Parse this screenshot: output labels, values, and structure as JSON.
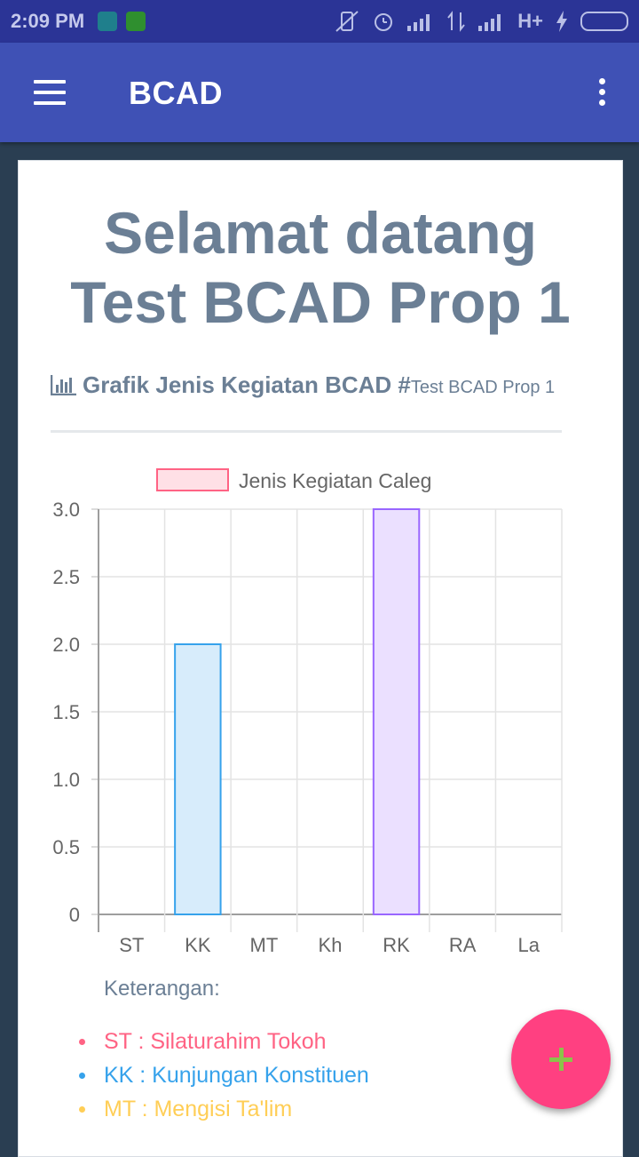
{
  "status_bar": {
    "time": "2:09 PM",
    "network_label": "H+",
    "icons": [
      "notification-app-icon",
      "notification-app-icon",
      "vibrate-off-icon",
      "alarm-icon",
      "signal-icon",
      "data-arrows-icon",
      "signal-icon",
      "charging-icon",
      "battery-icon"
    ]
  },
  "app_bar": {
    "title": "BCAD",
    "left_icon": "hamburger-menu-icon",
    "right_icon": "overflow-menu-icon"
  },
  "welcome": {
    "line1": "Selamat datang",
    "line2": "Test BCAD Prop 1"
  },
  "section": {
    "icon": "bar-chart-icon",
    "title": "Grafik Jenis Kegiatan BCAD #",
    "subtitle": "Test BCAD Prop 1"
  },
  "chart_data": {
    "type": "bar",
    "categories": [
      "ST",
      "KK",
      "MT",
      "Kh",
      "RK",
      "RA",
      "La"
    ],
    "series": [
      {
        "name": "Jenis Kegiatan Caleg",
        "values": [
          0,
          2,
          0,
          0,
          3,
          0,
          0
        ]
      }
    ],
    "ylim": [
      0,
      3
    ],
    "yticks": [
      0,
      0.5,
      1.0,
      1.5,
      2.0,
      2.5,
      3.0
    ],
    "ytick_labels": [
      "0",
      "0.5",
      "1.0",
      "1.5",
      "2.0",
      "2.5",
      "3.0"
    ],
    "legend_position": "top-center",
    "grid": true,
    "bar_fill_colors": [
      "#ffe0e6",
      "#d7ecfb",
      "#fff5dd",
      "#dbf2f2",
      "#ebe0ff",
      "#ffecd9",
      "#f4f5f5"
    ],
    "bar_border_colors": [
      "#ff6384",
      "#36a2eb",
      "#ffce56",
      "#4bc0c0",
      "#9966ff",
      "#ff9f40",
      "#c9cbcf"
    ],
    "legend_fill": "#ffe0e6",
    "legend_border": "#ff6384"
  },
  "keterangan": {
    "title": "Keterangan:",
    "items": [
      {
        "text": "ST : Silaturahim Tokoh",
        "color": "#ff6384"
      },
      {
        "text": "KK : Kunjungan Konstituen",
        "color": "#36a2eb"
      },
      {
        "text": "MT : Mengisi Ta'lim",
        "color": "#ffce56"
      }
    ]
  },
  "fab": {
    "icon": "plus-icon",
    "color": "#ff4081"
  }
}
